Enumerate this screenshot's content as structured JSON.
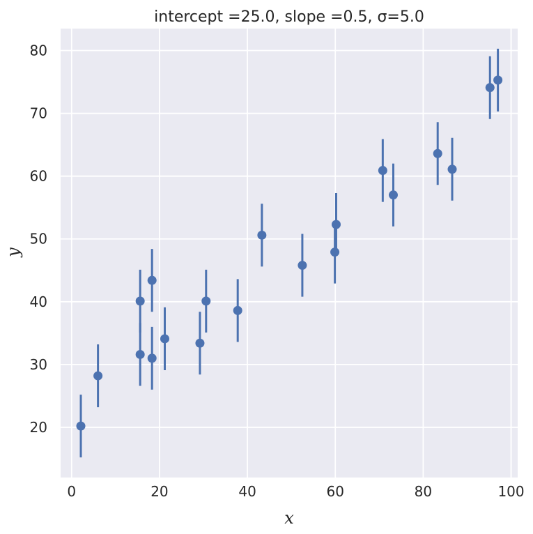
{
  "chart_data": {
    "type": "scatter",
    "title": "intercept $=25.0$, slope $=0.5$,  $\\sigma=5.0$",
    "title_display": "intercept =25.0, slope =0.5,  σ=5.0",
    "xlabel": "x",
    "ylabel": "y",
    "xlim": [
      -2.5,
      101.5
    ],
    "ylim": [
      12,
      83.5
    ],
    "xticks": [
      0,
      20,
      40,
      60,
      80,
      100
    ],
    "yticks": [
      20,
      30,
      40,
      50,
      60,
      70,
      80
    ],
    "grid": true,
    "marker_color": "#4c72b0",
    "background_color": "#eaeaf2",
    "error": 5.0,
    "points": [
      {
        "x": 2.1,
        "y": 20.2
      },
      {
        "x": 6.0,
        "y": 28.2
      },
      {
        "x": 15.6,
        "y": 40.1
      },
      {
        "x": 15.6,
        "y": 31.6
      },
      {
        "x": 18.3,
        "y": 43.4
      },
      {
        "x": 18.3,
        "y": 31.0
      },
      {
        "x": 21.2,
        "y": 34.1
      },
      {
        "x": 29.2,
        "y": 33.4
      },
      {
        "x": 30.6,
        "y": 40.1
      },
      {
        "x": 37.8,
        "y": 38.6
      },
      {
        "x": 43.3,
        "y": 50.6
      },
      {
        "x": 52.5,
        "y": 45.8
      },
      {
        "x": 59.9,
        "y": 47.9
      },
      {
        "x": 60.2,
        "y": 52.3
      },
      {
        "x": 70.8,
        "y": 60.9
      },
      {
        "x": 73.2,
        "y": 57.0
      },
      {
        "x": 83.3,
        "y": 63.6
      },
      {
        "x": 86.6,
        "y": 61.1
      },
      {
        "x": 95.2,
        "y": 74.1
      },
      {
        "x": 97.0,
        "y": 75.3
      }
    ]
  }
}
